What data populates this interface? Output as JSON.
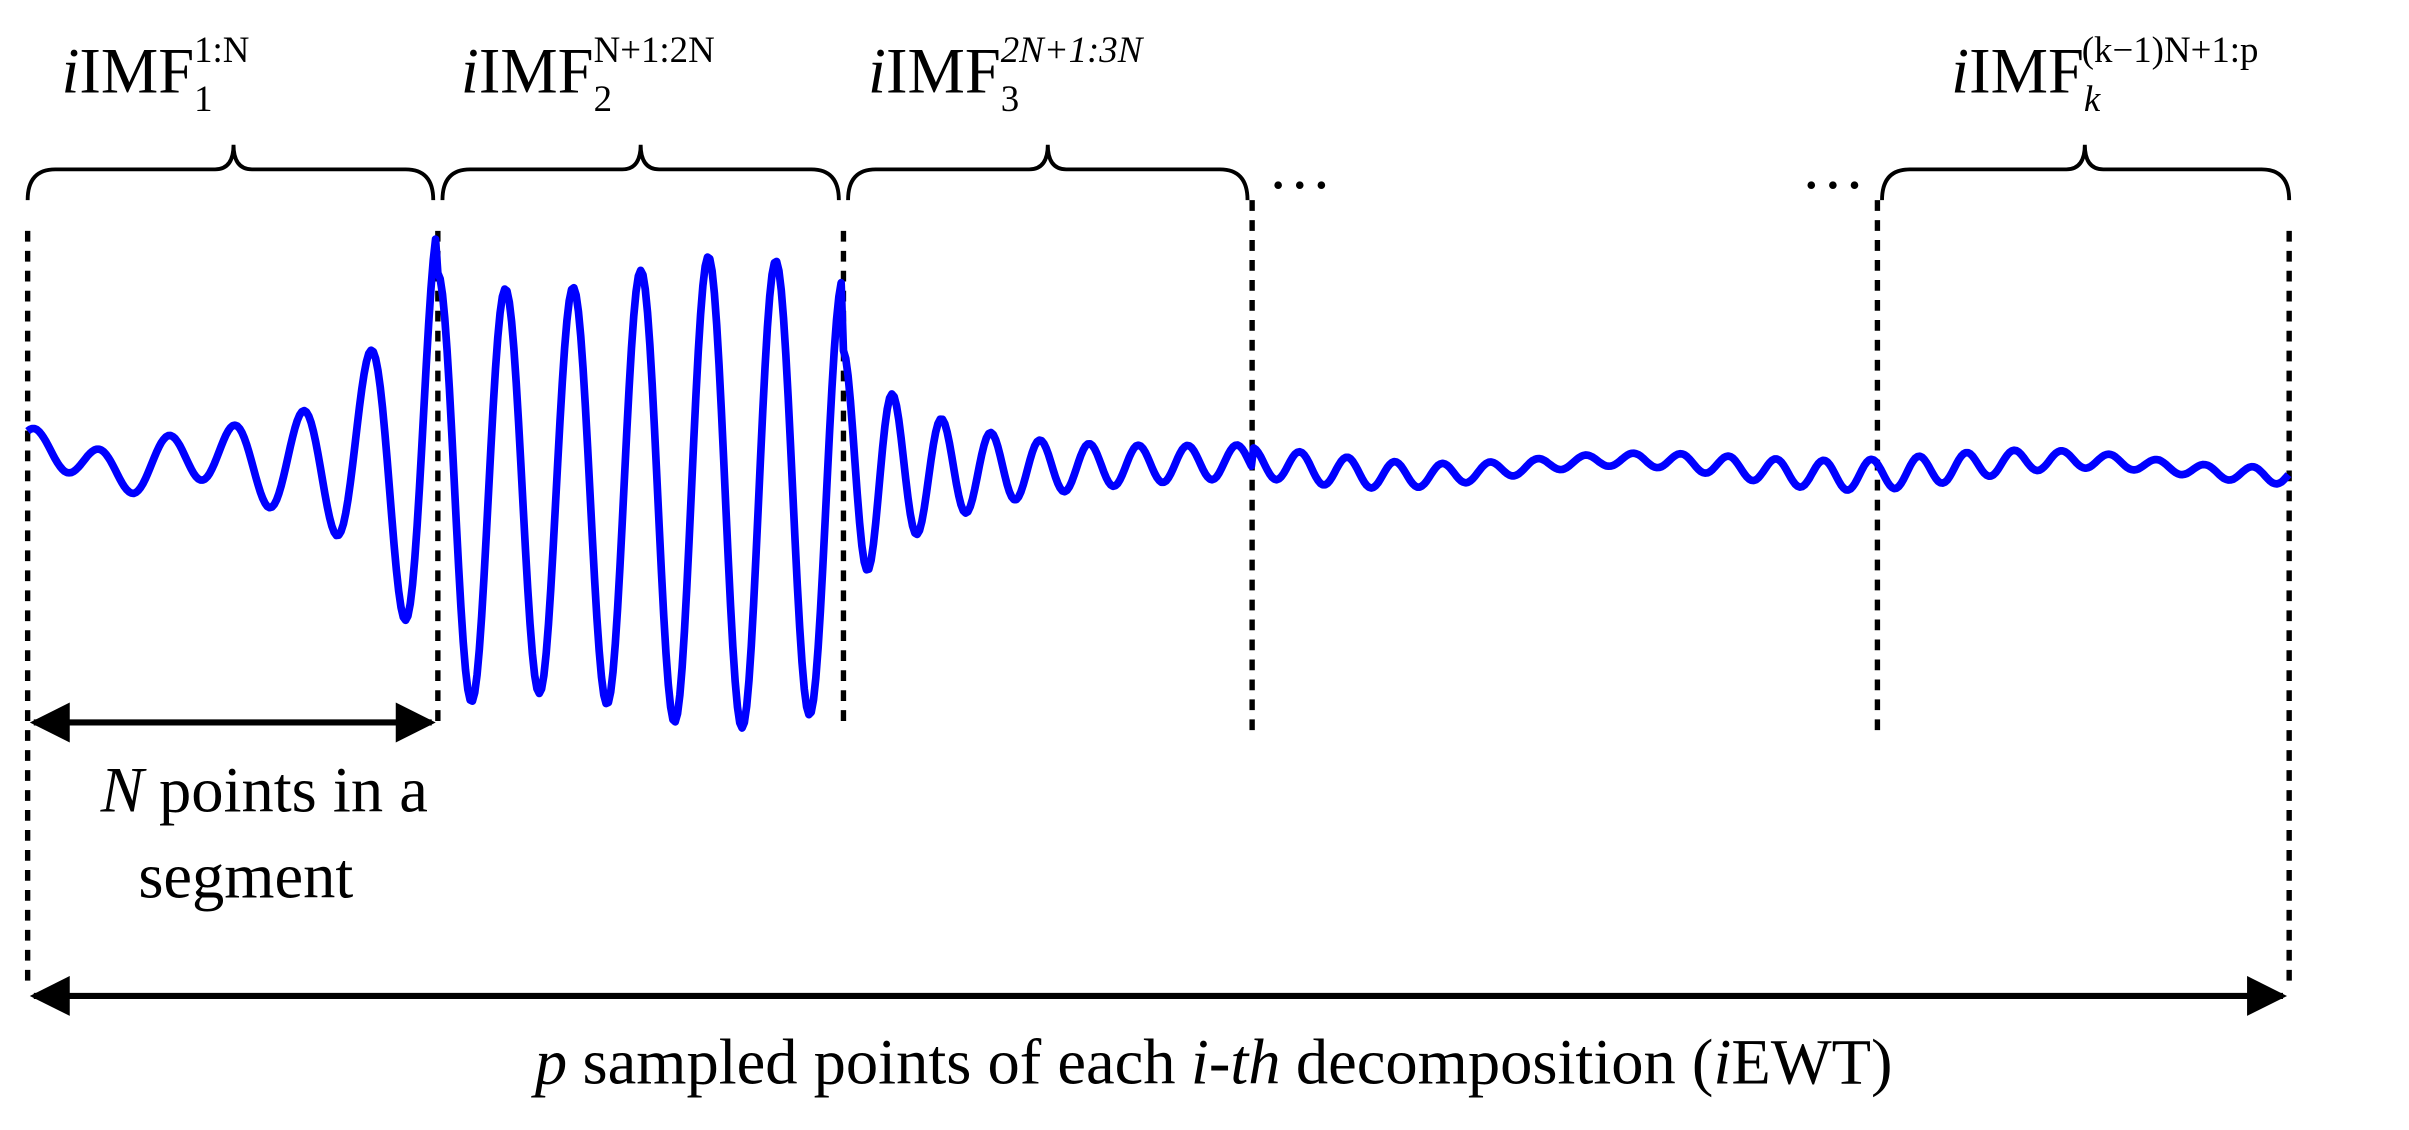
{
  "segments": [
    {
      "prefix": "i",
      "name": "IMF",
      "subscript": "1",
      "superscript": "1:N"
    },
    {
      "prefix": "i",
      "name": "IMF",
      "subscript": "2",
      "superscript": "N+1:2N"
    },
    {
      "prefix": "i",
      "name": "IMF",
      "subscript": "3",
      "superscript": "2N+1:3N"
    },
    {
      "prefix": "i",
      "name": "IMF",
      "subscript": "k",
      "superscript": "(k−1)N+1:p"
    }
  ],
  "ellipsis": [
    "…",
    "…"
  ],
  "segment_label": {
    "variable": "N",
    "line1": "points in a",
    "line2": "segment"
  },
  "total_label": {
    "variable": "p",
    "text1": "sampled points of each",
    "italic": "i-th",
    "text2": "decomposition (",
    "prefix": "i",
    "abbr": "EWT",
    "close": ")"
  }
}
